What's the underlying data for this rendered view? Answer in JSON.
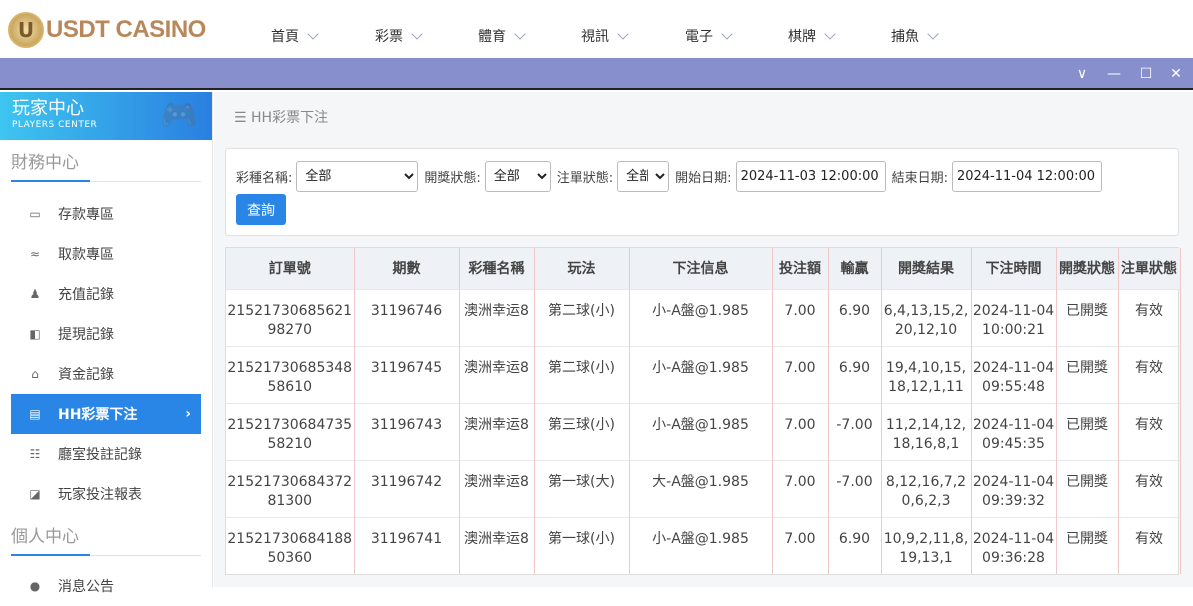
{
  "brand": {
    "logo_text": "USDT CASINO",
    "logo_mark": "U"
  },
  "nav": [
    {
      "label": "首頁"
    },
    {
      "label": "彩票"
    },
    {
      "label": "體育"
    },
    {
      "label": "視訊"
    },
    {
      "label": "電子"
    },
    {
      "label": "棋牌"
    },
    {
      "label": "捕魚"
    }
  ],
  "window_controls": {
    "collapse": "∨",
    "minimize": "—",
    "maximize": "☐",
    "close": "✕"
  },
  "sidebar": {
    "title": "玩家中心",
    "subtitle": "PLAYERS CENTER",
    "section1": "財務中心",
    "items": [
      {
        "label": "存款專區",
        "icon": "card-icon"
      },
      {
        "label": "取款專區",
        "icon": "hand-money-icon"
      },
      {
        "label": "充值記錄",
        "icon": "money-bag-icon"
      },
      {
        "label": "提現記錄",
        "icon": "wallet-icon"
      },
      {
        "label": "資金記錄",
        "icon": "safe-icon"
      },
      {
        "label": "HH彩票下注",
        "icon": "list-icon",
        "active": true
      },
      {
        "label": "廳室投註記錄",
        "icon": "list-bullets-icon"
      },
      {
        "label": "玩家投注報表",
        "icon": "chart-icon"
      }
    ],
    "section2": "個人中心",
    "items2": [
      {
        "label": "消息公告"
      }
    ]
  },
  "breadcrumb": "HH彩票下注",
  "filters": {
    "lottery_label": "彩種名稱:",
    "lottery_value": "全部",
    "draw_label": "開獎狀態:",
    "draw_value": "全部",
    "bet_label": "注單狀態:",
    "bet_value": "全部",
    "start_label": "開始日期:",
    "start_value": "2024-11-03 12:00:00",
    "end_label": "結束日期:",
    "end_value": "2024-11-04 12:00:00",
    "query": "查詢"
  },
  "table": {
    "headers": [
      "訂單號",
      "期數",
      "彩種名稱",
      "玩法",
      "下注信息",
      "投注額",
      "輸贏",
      "開獎結果",
      "下注時間",
      "開獎狀態",
      "注單狀態"
    ],
    "rows": [
      [
        "2152173068562198270",
        "31196746",
        "澳洲幸运8",
        "第二球(小)",
        "小-A盤@1.985",
        "7.00",
        "6.90",
        "6,4,13,15,2,20,12,10",
        "2024-11-04 10:00:21",
        "已開獎",
        "有效"
      ],
      [
        "2152173068534858610",
        "31196745",
        "澳洲幸运8",
        "第二球(小)",
        "小-A盤@1.985",
        "7.00",
        "6.90",
        "19,4,10,15,18,12,1,11",
        "2024-11-04 09:55:48",
        "已開獎",
        "有效"
      ],
      [
        "2152173068473558210",
        "31196743",
        "澳洲幸运8",
        "第三球(小)",
        "小-A盤@1.985",
        "7.00",
        "-7.00",
        "11,2,14,12,18,16,8,1",
        "2024-11-04 09:45:35",
        "已開獎",
        "有效"
      ],
      [
        "2152173068437281300",
        "31196742",
        "澳洲幸运8",
        "第一球(大)",
        "大-A盤@1.985",
        "7.00",
        "-7.00",
        "8,12,16,7,20,6,2,3",
        "2024-11-04 09:39:32",
        "已開獎",
        "有效"
      ],
      [
        "2152173068418850360",
        "31196741",
        "澳洲幸运8",
        "第一球(小)",
        "小-A盤@1.985",
        "7.00",
        "6.90",
        "10,9,2,11,8,19,13,1",
        "2024-11-04 09:36:28",
        "已開獎",
        "有效"
      ]
    ]
  }
}
